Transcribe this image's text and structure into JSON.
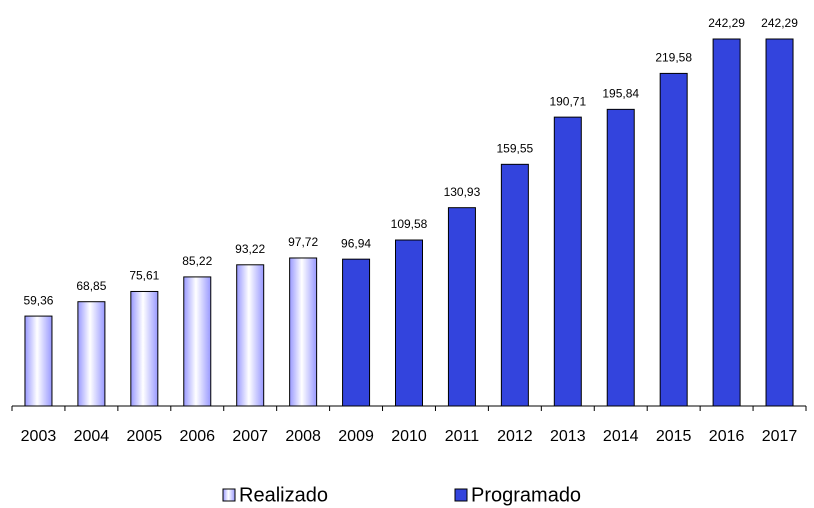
{
  "chart_data": {
    "type": "bar",
    "categories": [
      "2003",
      "2004",
      "2005",
      "2006",
      "2007",
      "2008",
      "2009",
      "2010",
      "2011",
      "2012",
      "2013",
      "2014",
      "2015",
      "2016",
      "2017"
    ],
    "series": [
      {
        "name": "Realizado",
        "color": "#9999ff",
        "values": [
          59.36,
          68.85,
          75.61,
          85.22,
          93.22,
          97.72,
          null,
          null,
          null,
          null,
          null,
          null,
          null,
          null,
          null
        ],
        "value_labels": [
          "59,36",
          "68,85",
          "75,61",
          "85,22",
          "93,22",
          "97,72",
          null,
          null,
          null,
          null,
          null,
          null,
          null,
          null,
          null
        ]
      },
      {
        "name": "Programado",
        "color": "#3344dd",
        "values": [
          null,
          null,
          null,
          null,
          null,
          null,
          96.94,
          109.58,
          130.93,
          159.55,
          190.71,
          195.84,
          219.58,
          242.29,
          242.29
        ],
        "value_labels": [
          null,
          null,
          null,
          null,
          null,
          null,
          "96,94",
          "109,58",
          "130,93",
          "159,55",
          "190,71",
          "195,84",
          "219,58",
          "242,29",
          "242,29"
        ]
      }
    ]
  }
}
